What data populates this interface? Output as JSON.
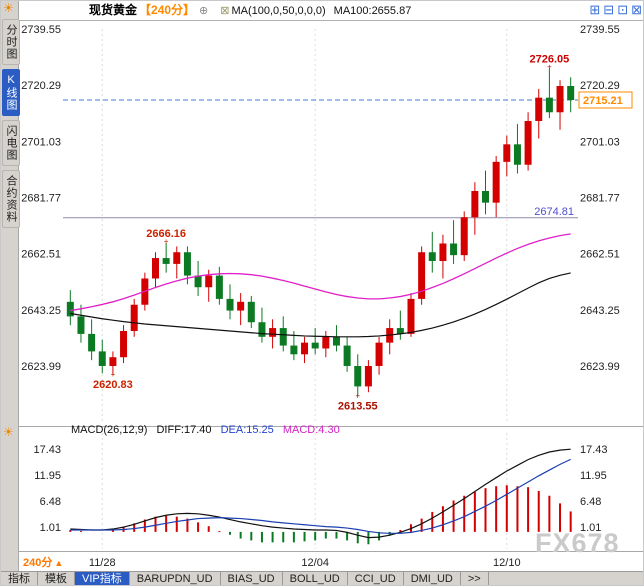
{
  "header": {
    "symbol": "现货黄金",
    "period": "【240分】",
    "ma_label": "MA(100,0,50,0,0,0)",
    "ma_value": "MA100:2655.87"
  },
  "icons": {
    "sun": "☀",
    "circle_plus": "⊕",
    "boxed_x": "⊠",
    "up_triangle": "▲",
    "window_glyphs": [
      "⊞",
      "⊟",
      "⊡",
      "⊠"
    ]
  },
  "sidebar": {
    "items": [
      {
        "label": "分时图",
        "selected": false
      },
      {
        "label": "K线图",
        "selected": true
      },
      {
        "label": "闪电图",
        "selected": false
      },
      {
        "label": "合约资料",
        "selected": false
      }
    ]
  },
  "macd_header": {
    "name": "MACD(26,12,9)",
    "diff": "DIFF:17.40",
    "dea": "DEA:15.25",
    "macd": "MACD:4.30"
  },
  "footer": {
    "period_label": "240分"
  },
  "watermark": "FX678",
  "toolbar": {
    "items": [
      "指标",
      "模板",
      "VIP指标",
      "BARUPDN_UD",
      "BIAS_UD",
      "BOLL_UD",
      "CCI_UD",
      "DMI_UD",
      ">>"
    ],
    "selected_index": 2
  },
  "chart_data": {
    "type": "candlestick",
    "title": "现货黄金 240分",
    "y_axis_labels": [
      2739.55,
      2720.29,
      2701.03,
      2681.77,
      2662.51,
      2643.25,
      2623.99
    ],
    "price_axis": {
      "max": 2739.55,
      "min": 2623.99
    },
    "colors": {
      "up": "#d40000",
      "down": "#0b7a23",
      "ma100": "#111111",
      "ma50": "#e020c8",
      "dea": "#1a3fb0",
      "last_price_box": "#ff8a00",
      "last_price_line": "#3f7fd6",
      "support_label": "#5050cc",
      "support_line": "#8b8bb0"
    },
    "x_ticks": [
      {
        "index": 3,
        "label": "11/28"
      },
      {
        "index": 23,
        "label": "12/04"
      },
      {
        "index": 41,
        "label": "12/10"
      }
    ],
    "candles": [
      [
        2646,
        2650,
        2638,
        2641
      ],
      [
        2641,
        2645,
        2632,
        2635
      ],
      [
        2635,
        2640,
        2626,
        2629
      ],
      [
        2629,
        2633,
        2621.5,
        2624
      ],
      [
        2624,
        2629,
        2620.83,
        2627
      ],
      [
        2627,
        2638,
        2625,
        2636
      ],
      [
        2636,
        2647,
        2634,
        2645
      ],
      [
        2645,
        2656,
        2643,
        2654
      ],
      [
        2654,
        2663,
        2651,
        2661
      ],
      [
        2661,
        2666.16,
        2656,
        2659
      ],
      [
        2659,
        2665,
        2654,
        2663
      ],
      [
        2663,
        2665,
        2652,
        2655
      ],
      [
        2655,
        2660,
        2648,
        2651
      ],
      [
        2651,
        2657,
        2646,
        2655
      ],
      [
        2655,
        2658,
        2645,
        2647
      ],
      [
        2647,
        2652,
        2640,
        2643
      ],
      [
        2643,
        2649,
        2638,
        2646
      ],
      [
        2646,
        2648,
        2637,
        2639
      ],
      [
        2639,
        2644,
        2632,
        2634
      ],
      [
        2634,
        2640,
        2630,
        2637
      ],
      [
        2637,
        2641,
        2629,
        2631
      ],
      [
        2631,
        2636,
        2626,
        2628
      ],
      [
        2628,
        2634,
        2625,
        2632
      ],
      [
        2632,
        2637,
        2628,
        2630
      ],
      [
        2630,
        2636,
        2627,
        2634
      ],
      [
        2634,
        2638,
        2629,
        2631
      ],
      [
        2631,
        2634,
        2622,
        2624
      ],
      [
        2624,
        2628,
        2613.55,
        2617
      ],
      [
        2617,
        2626,
        2615,
        2624
      ],
      [
        2624,
        2634,
        2621,
        2632
      ],
      [
        2632,
        2640,
        2628,
        2637
      ],
      [
        2637,
        2643,
        2633,
        2635
      ],
      [
        2635,
        2649,
        2634,
        2647
      ],
      [
        2647,
        2665,
        2645,
        2663
      ],
      [
        2663,
        2670,
        2656,
        2660
      ],
      [
        2660,
        2669,
        2654,
        2666
      ],
      [
        2666,
        2674,
        2659,
        2662
      ],
      [
        2662,
        2677,
        2660,
        2675
      ],
      [
        2675,
        2687,
        2669,
        2684
      ],
      [
        2684,
        2691,
        2676,
        2680
      ],
      [
        2680,
        2696,
        2675,
        2694
      ],
      [
        2694,
        2703,
        2689,
        2700
      ],
      [
        2700,
        2707,
        2690,
        2693
      ],
      [
        2693,
        2711,
        2691,
        2708
      ],
      [
        2708,
        2719,
        2702,
        2716
      ],
      [
        2716,
        2726.05,
        2709,
        2711
      ],
      [
        2711,
        2722,
        2705,
        2720
      ],
      [
        2720,
        2723,
        2711,
        2715.21
      ]
    ],
    "ma100": [
      2642.0,
      2641.4,
      2640.8,
      2640.2,
      2639.7,
      2639.2,
      2638.8,
      2638.4,
      2638.1,
      2637.8,
      2637.5,
      2637.2,
      2636.9,
      2636.6,
      2636.3,
      2636.0,
      2635.7,
      2635.4,
      2635.1,
      2634.9,
      2634.7,
      2634.5,
      2634.3,
      2634.2,
      2634.1,
      2634.0,
      2634.0,
      2634.0,
      2634.1,
      2634.3,
      2634.6,
      2635.0,
      2635.5,
      2636.2,
      2637.0,
      2638.0,
      2639.1,
      2640.4,
      2641.8,
      2643.4,
      2645.1,
      2646.9,
      2648.8,
      2650.7,
      2652.5,
      2654.0,
      2655.1,
      2655.9
    ],
    "ma50": [
      2643.0,
      2643.6,
      2644.3,
      2645.1,
      2646.0,
      2647.1,
      2648.3,
      2649.6,
      2650.9,
      2652.1,
      2653.2,
      2654.1,
      2654.8,
      2655.3,
      2655.6,
      2655.7,
      2655.6,
      2655.3,
      2654.8,
      2654.1,
      2653.3,
      2652.4,
      2651.4,
      2650.4,
      2649.4,
      2648.5,
      2647.8,
      2647.3,
      2647.0,
      2647.0,
      2647.3,
      2647.8,
      2648.6,
      2649.6,
      2650.9,
      2652.3,
      2653.9,
      2655.6,
      2657.4,
      2659.2,
      2661.0,
      2662.7,
      2664.3,
      2665.7,
      2666.9,
      2667.9,
      2668.7,
      2669.3
    ],
    "annotations": [
      {
        "index": 4,
        "value": 2620.83,
        "label": "2620.83",
        "position": "below",
        "color": "#cc2200"
      },
      {
        "index": 9,
        "value": 2666.16,
        "label": "2666.16",
        "position": "above",
        "color": "#cc2200"
      },
      {
        "index": 27,
        "value": 2613.55,
        "label": "2613.55",
        "position": "below",
        "color": "#aa1100"
      },
      {
        "index": 45,
        "value": 2726.05,
        "label": "2726.05",
        "position": "above",
        "color": "#cc0000"
      }
    ],
    "lines": {
      "support": {
        "value": 2674.81,
        "label": "2674.81"
      },
      "last_price": {
        "value": 2715.21,
        "label": "2715.21"
      }
    },
    "macd": {
      "name": "MACD(26,12,9)",
      "diff_value": 17.4,
      "dea_value": 15.25,
      "macd_value": 4.3,
      "y_labels": [
        17.43,
        11.95,
        6.48,
        1.01
      ],
      "ylim": {
        "max": 20.8,
        "min": -3.6
      },
      "diff": [
        0.6,
        0.5,
        0.4,
        0.4,
        0.6,
        1.0,
        1.6,
        2.3,
        3.0,
        3.5,
        3.8,
        3.9,
        3.8,
        3.5,
        3.1,
        2.6,
        2.1,
        1.7,
        1.3,
        1.0,
        0.8,
        0.6,
        0.5,
        0.4,
        0.4,
        0.3,
        -0.1,
        -0.7,
        -1.2,
        -1.1,
        -0.7,
        -0.1,
        0.7,
        1.7,
        2.9,
        4.2,
        5.6,
        7.0,
        8.5,
        10.0,
        11.4,
        12.8,
        14.0,
        15.2,
        16.1,
        16.8,
        17.2,
        17.4
      ],
      "dea": [
        0.4,
        0.4,
        0.4,
        0.4,
        0.4,
        0.5,
        0.7,
        1.0,
        1.4,
        1.8,
        2.2,
        2.5,
        2.8,
        2.9,
        3.0,
        2.9,
        2.8,
        2.6,
        2.4,
        2.1,
        1.9,
        1.7,
        1.5,
        1.3,
        1.1,
        1.0,
        0.8,
        0.5,
        0.1,
        -0.2,
        -0.3,
        -0.3,
        -0.1,
        0.3,
        0.8,
        1.5,
        2.3,
        3.2,
        4.3,
        5.4,
        6.6,
        7.9,
        9.2,
        10.5,
        11.8,
        13.0,
        14.2,
        15.25
      ]
    }
  }
}
